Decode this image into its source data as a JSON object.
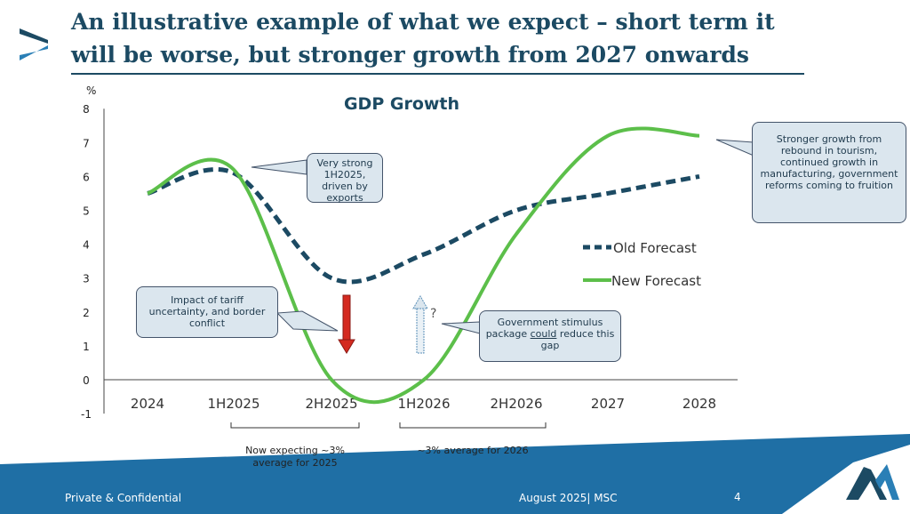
{
  "header": {
    "title": "An illustrative example of what we expect – short term it will be worse, but stronger growth from 2027 onwards"
  },
  "callouts": {
    "exports": "Very strong 1H2025, driven by exports",
    "tariff": "Impact of tariff uncertainty, and border conflict",
    "stimulus_pre": "Government stimulus package ",
    "stimulus_u": "could",
    "stimulus_post": " reduce this gap",
    "rebound": "Stronger growth from rebound in tourism, continued growth in manufacturing, government reforms coming to fruition",
    "question": "?"
  },
  "notes": {
    "n2025": "Now expecting ~3% average for 2025",
    "n2026": "~3% average for 2026"
  },
  "footer": {
    "left": "Private & Confidential",
    "date": "August 2025| MSC",
    "page": "4"
  },
  "colors": {
    "navy": "#1c4a63",
    "green": "#5cbf4a",
    "red": "#d42a20",
    "footer": "#1f6fa5"
  },
  "chart_data": {
    "type": "line",
    "title": "GDP Growth",
    "ylabel": "%",
    "ylim": [
      -1,
      8
    ],
    "yticks": [
      "-1",
      "0",
      "1",
      "2",
      "3",
      "4",
      "5",
      "6",
      "7",
      "8"
    ],
    "categories": [
      "2024",
      "1H2025",
      "2H2025",
      "1H2026",
      "2H2026",
      "2027",
      "2028"
    ],
    "series": [
      {
        "name": "Old Forecast",
        "style": "dashed",
        "color": "#1c4a63",
        "values": [
          5.5,
          6.1,
          3.0,
          3.7,
          5.0,
          5.5,
          6.0
        ]
      },
      {
        "name": "New Forecast",
        "style": "solid",
        "color": "#5cbf4a",
        "values": [
          5.5,
          6.2,
          0.0,
          0.0,
          4.3,
          7.2,
          7.2
        ]
      }
    ]
  }
}
